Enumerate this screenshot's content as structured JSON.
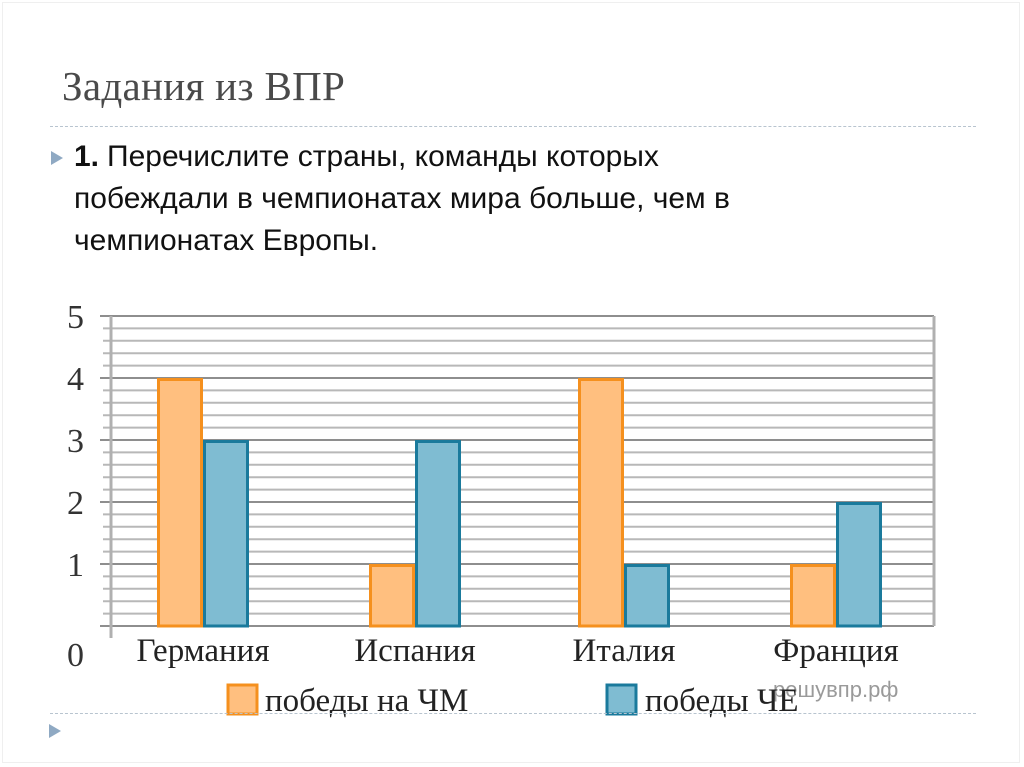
{
  "slide": {
    "title": "Задания из ВПР",
    "task": {
      "number": "1.",
      "text": "Перечислите страны, команды которых побеждали в чемпионатах мира больше, чем в чемпионатах Европы.",
      "lines": [
        "Перечислите страны, команды которых",
        "побеждали в чемпионатах мира больше, чем в",
        "чемпионатах Европы."
      ]
    },
    "watermark": "решувпр.рф",
    "colors": {
      "wc_fill": "#ffbf7f",
      "wc_stroke": "#f5901e",
      "euro_fill": "#7fbcd2",
      "euro_stroke": "#1a7a9c",
      "bullet": "#8fa9c3",
      "title": "#4a4a4a"
    }
  },
  "chart_data": {
    "type": "bar",
    "title": "",
    "xlabel": "",
    "ylabel": "",
    "categories": [
      "Германия",
      "Испания",
      "Италия",
      "Франция"
    ],
    "series": [
      {
        "name": "победы на ЧМ",
        "values": [
          4,
          1,
          4,
          1
        ],
        "color": "#ffbf7f"
      },
      {
        "name": "победы ЧЕ",
        "values": [
          3,
          3,
          1,
          2
        ],
        "color": "#7fbcd2"
      }
    ],
    "ylim": [
      0,
      5
    ],
    "yticks": [
      "0",
      "1",
      "2",
      "3",
      "4",
      "5"
    ],
    "grid": true,
    "minor_grid_step": 0.2,
    "legend_position": "bottom"
  }
}
